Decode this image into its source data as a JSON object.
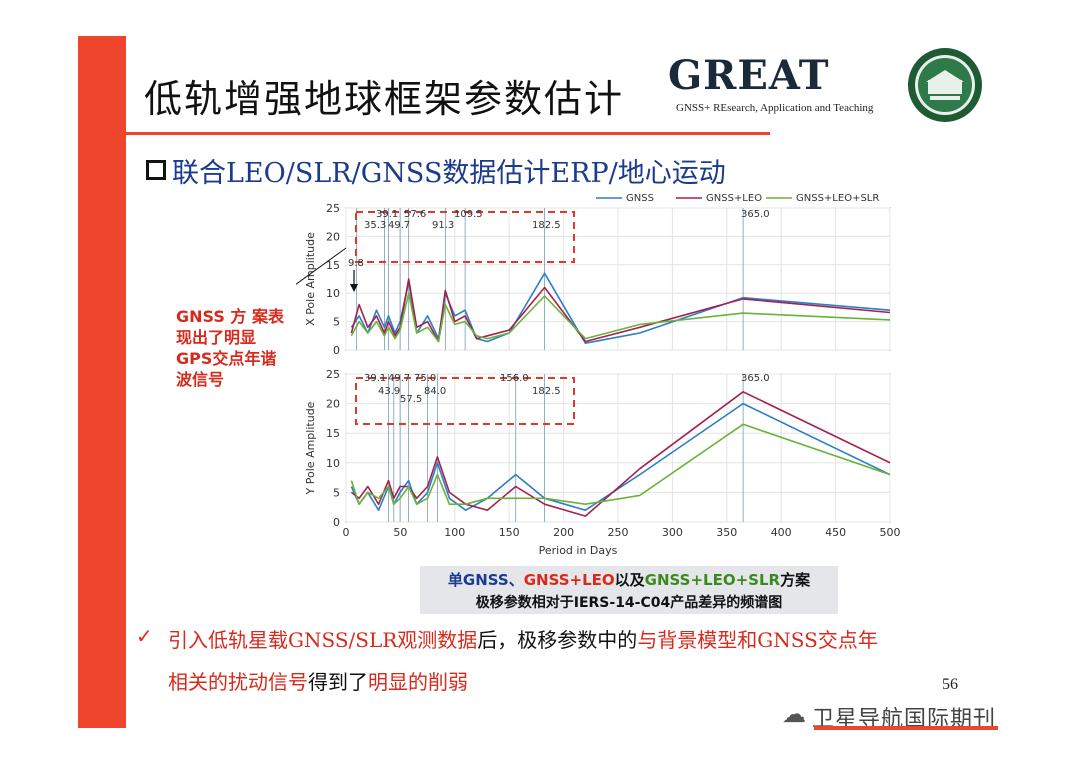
{
  "slide": {
    "title": "低轨增强地球框架参数估计",
    "brand_name": "GREAT",
    "brand_tagline": "GNSS+ REsearch, Application and Teaching",
    "section_title": "联合LEO/SLR/GNSS数据估计ERP/地心运动",
    "annotation": "GNSS 方 案表现出了明显GPS交点年谐波信号",
    "caption": {
      "part1": "单GNSS、",
      "part2": "GNSS+LEO",
      "part3": "以及",
      "part4": "GNSS+LEO+SLR",
      "part5": "方案",
      "line2": "极移参数相对于IERS-14-C04产品差异的频谱图"
    },
    "conclusion": {
      "check_icon": "✓",
      "seg1": "引入低轨星载GNSS/SLR观测数据",
      "seg2": "后，极移参数中的",
      "seg3": "与背景模型和GNSS交点年",
      "seg4": "相关的扰动信号",
      "seg5": "得到了",
      "seg6": "明显的削弱"
    },
    "page_number": "56",
    "watermark": "卫星导航国际期刊",
    "colors": {
      "accent": "#f0452d",
      "annotation": "#d82a1c",
      "gnss": "#2b7ec9",
      "gnss_leo": "#a4214e",
      "gnss_leo_slr": "#6ab23a"
    }
  },
  "chart_data": [
    {
      "type": "line",
      "ylabel": "X Pole Amplitude",
      "xlabel": "",
      "xlim": [
        0,
        500
      ],
      "ylim": [
        0,
        25
      ],
      "xticks": [],
      "yticks": [
        0,
        5,
        10,
        15,
        20,
        25
      ],
      "grid": true,
      "legend": {
        "placement": "top-right",
        "entries": [
          "GNSS",
          "GNSS+LEO",
          "GNSS+LEO+SLR"
        ]
      },
      "marker_labels": [
        "39.1",
        "57.6",
        "109.5",
        "35.3",
        "49.7",
        "91.3",
        "182.5",
        "365.0",
        "9.8"
      ],
      "marker_periods": [
        9.8,
        35.3,
        39.1,
        49.7,
        57.6,
        91.3,
        109.5,
        182.5,
        365.0
      ],
      "series": [
        {
          "name": "GNSS",
          "x": [
            5,
            12,
            20,
            28,
            35.3,
            39.1,
            45,
            49.7,
            57.6,
            65,
            75,
            85,
            91.3,
            100,
            109.5,
            120,
            130,
            150,
            182.5,
            220,
            270,
            365,
            500
          ],
          "y": [
            4,
            6,
            3,
            7,
            4,
            6,
            3,
            5,
            12,
            3,
            6,
            2,
            10,
            6,
            7,
            2,
            1.5,
            3,
            13.5,
            1.2,
            3,
            9.2,
            7
          ]
        },
        {
          "name": "GNSS+LEO",
          "x": [
            5,
            12,
            20,
            28,
            35.3,
            39.1,
            45,
            49.7,
            57.6,
            65,
            75,
            85,
            91.3,
            100,
            109.5,
            120,
            130,
            150,
            182.5,
            220,
            270,
            365,
            500
          ],
          "y": [
            3,
            8,
            4,
            6,
            3,
            5,
            2.5,
            4,
            12.5,
            4,
            5,
            1.5,
            10.5,
            5,
            6,
            2,
            2.5,
            3.5,
            11,
            1.5,
            4,
            9,
            6.6
          ]
        },
        {
          "name": "GNSS+LEO+SLR",
          "x": [
            5,
            12,
            20,
            28,
            35.3,
            39.1,
            45,
            49.7,
            57.6,
            65,
            75,
            85,
            91.3,
            100,
            109.5,
            120,
            130,
            150,
            182.5,
            220,
            270,
            365,
            500
          ],
          "y": [
            2.5,
            5,
            3,
            5,
            2.5,
            4,
            2,
            3.5,
            10,
            3,
            4,
            1.5,
            8,
            4.5,
            5,
            2.5,
            2,
            3,
            9.5,
            2,
            4.5,
            6.5,
            5.3
          ]
        }
      ]
    },
    {
      "type": "line",
      "ylabel": "Y Pole Amplitude",
      "xlabel": "Period in Days",
      "xlim": [
        0,
        500
      ],
      "ylim": [
        0,
        25
      ],
      "xticks": [
        0,
        50,
        100,
        150,
        200,
        250,
        300,
        350,
        400,
        450,
        500
      ],
      "yticks": [
        0,
        5,
        10,
        15,
        20,
        25
      ],
      "grid": true,
      "marker_labels": [
        "39.1",
        "49.7",
        "75.0",
        "156.0",
        "43.9",
        "57.5",
        "84.0",
        "182.5",
        "365.0"
      ],
      "marker_periods": [
        39.1,
        43.9,
        49.7,
        57.5,
        75.0,
        84.0,
        156.0,
        182.5,
        365.0
      ],
      "series": [
        {
          "name": "GNSS",
          "x": [
            5,
            12,
            20,
            30,
            39.1,
            43.9,
            49.7,
            57.5,
            65,
            75,
            84,
            95,
            110,
            130,
            156,
            182.5,
            220,
            270,
            365,
            500
          ],
          "y": [
            6,
            3,
            5,
            2,
            6,
            3,
            5,
            7,
            3,
            5,
            10,
            4,
            2,
            4,
            8,
            4,
            2,
            8,
            20,
            8
          ]
        },
        {
          "name": "GNSS+LEO",
          "x": [
            5,
            12,
            20,
            30,
            39.1,
            43.9,
            49.7,
            57.5,
            65,
            75,
            84,
            95,
            110,
            130,
            156,
            182.5,
            220,
            270,
            365,
            500
          ],
          "y": [
            5,
            4,
            6,
            3,
            7,
            4,
            6,
            6,
            4,
            6,
            11,
            5,
            3,
            2,
            6,
            3,
            1,
            9,
            22,
            10
          ]
        },
        {
          "name": "GNSS+LEO+SLR",
          "x": [
            5,
            12,
            20,
            30,
            39.1,
            43.9,
            49.7,
            57.5,
            65,
            75,
            84,
            95,
            110,
            130,
            156,
            182.5,
            220,
            270,
            365,
            500
          ],
          "y": [
            7,
            3,
            5,
            4,
            6,
            3,
            4,
            6,
            3,
            4,
            8,
            3,
            3,
            4,
            4,
            4,
            3,
            4.5,
            16.5,
            8
          ]
        }
      ]
    }
  ]
}
